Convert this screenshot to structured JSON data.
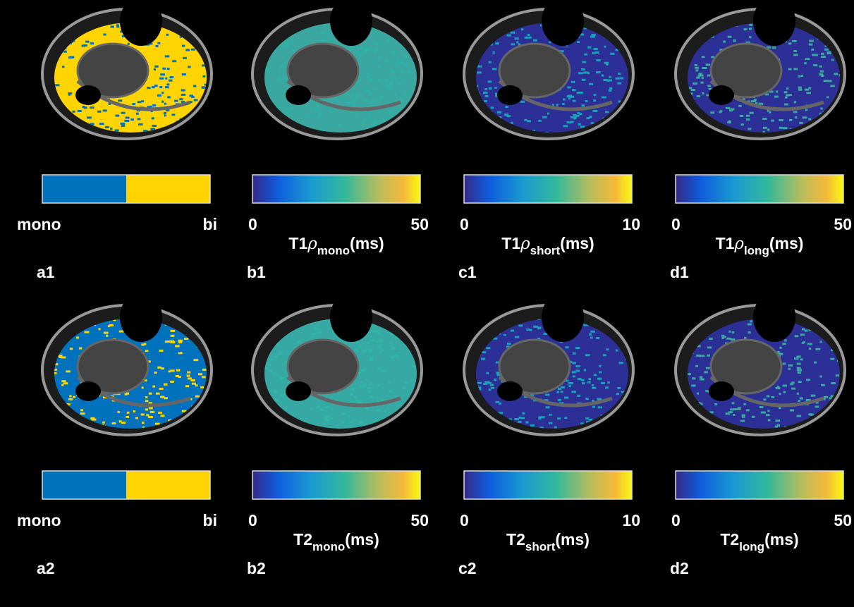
{
  "panels": [
    {
      "id": "a1",
      "colorbar": {
        "kind": "binary",
        "labels": [
          "mono",
          "bi"
        ],
        "colors": [
          "#0072BD",
          "#FFD400"
        ]
      }
    },
    {
      "id": "b1",
      "colorbar": {
        "kind": "gradient",
        "colormap": "parula",
        "ticks": [
          0,
          50
        ]
      },
      "label": {
        "main": "T1",
        "symbol": "ρ",
        "sub": "mono",
        "unit": "(ms)"
      }
    },
    {
      "id": "c1",
      "colorbar": {
        "kind": "gradient",
        "colormap": "parula",
        "ticks": [
          0,
          10
        ]
      },
      "label": {
        "main": "T1",
        "symbol": "ρ",
        "sub": "short",
        "unit": "(ms)"
      }
    },
    {
      "id": "d1",
      "colorbar": {
        "kind": "gradient",
        "colormap": "parula",
        "ticks": [
          0,
          50
        ]
      },
      "label": {
        "main": "T1",
        "symbol": "ρ",
        "sub": "long",
        "unit": "(ms)"
      }
    },
    {
      "id": "a2",
      "colorbar": {
        "kind": "binary",
        "labels": [
          "mono",
          "bi"
        ],
        "colors": [
          "#0072BD",
          "#FFD400"
        ]
      }
    },
    {
      "id": "b2",
      "colorbar": {
        "kind": "gradient",
        "colormap": "parula",
        "ticks": [
          0,
          50
        ]
      },
      "label": {
        "main": "T2",
        "sub": "mono",
        "unit": "(ms)"
      }
    },
    {
      "id": "c2",
      "colorbar": {
        "kind": "gradient",
        "colormap": "parula",
        "ticks": [
          0,
          10
        ]
      },
      "label": {
        "main": "T2",
        "sub": "short",
        "unit": "(ms)"
      }
    },
    {
      "id": "d2",
      "colorbar": {
        "kind": "gradient",
        "colormap": "parula",
        "ticks": [
          0,
          50
        ]
      },
      "label": {
        "main": "T2",
        "sub": "long",
        "unit": "(ms)"
      }
    }
  ]
}
